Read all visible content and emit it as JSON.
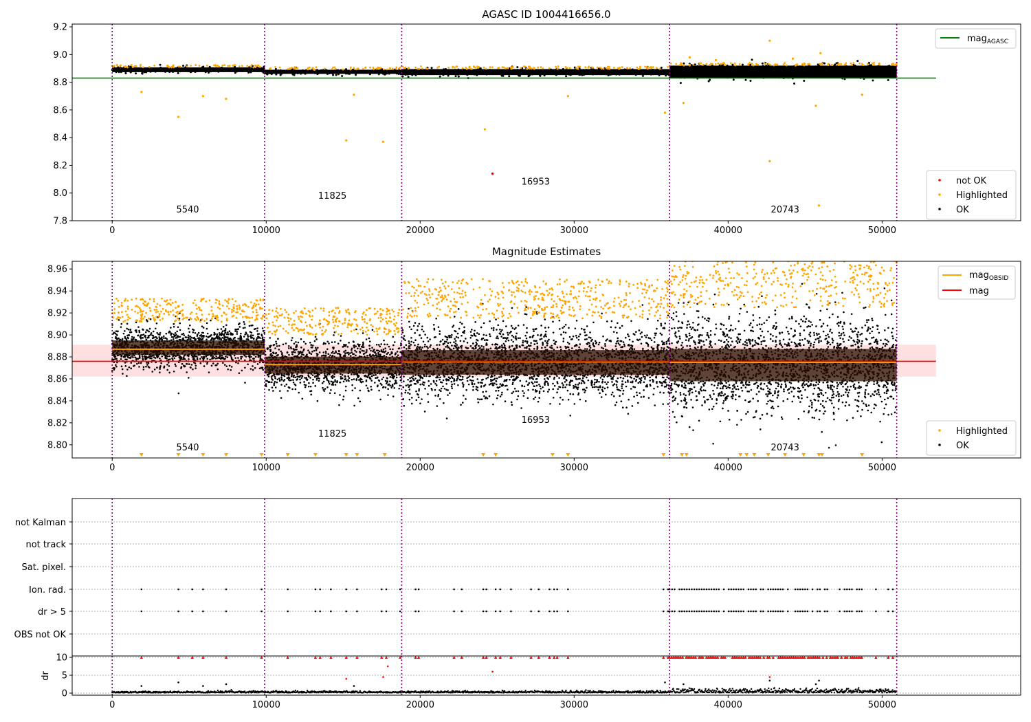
{
  "chart_data": [
    {
      "type": "scatter",
      "title": "AGASC ID 1004416656.0",
      "xlim": [
        -2600,
        59000
      ],
      "ylim": [
        7.8,
        9.22
      ],
      "xticks": [
        0,
        10000,
        20000,
        30000,
        40000,
        50000
      ],
      "yticks": [
        "7.8",
        "8.0",
        "8.2",
        "8.4",
        "8.6",
        "8.8",
        "9.0",
        "9.2"
      ],
      "obs_boundaries": [
        0,
        9900,
        18800,
        36200,
        50950
      ],
      "obs_labels": [
        {
          "text": "5540",
          "x": 4900,
          "y": 7.86
        },
        {
          "text": "11825",
          "x": 14300,
          "y": 7.96
        },
        {
          "text": "16953",
          "x": 27500,
          "y": 8.06
        },
        {
          "text": "20743",
          "x": 43700,
          "y": 7.86
        }
      ],
      "series": [
        {
          "name": "mag_AGASC",
          "kind": "hline",
          "y": 8.83,
          "x_range": [
            -2600,
            53500
          ],
          "color": "#008000"
        },
        {
          "name": "not OK",
          "kind": "points",
          "color": "#ff0000",
          "points": [
            [
              24700,
              8.14
            ]
          ]
        },
        {
          "name": "Highlighted",
          "kind": "points",
          "color": "#ffa500",
          "points": [
            [
              1900,
              8.73
            ],
            [
              4300,
              8.55
            ],
            [
              5900,
              8.7
            ],
            [
              7400,
              8.68
            ],
            [
              15200,
              8.38
            ],
            [
              15700,
              8.71
            ],
            [
              17600,
              8.37
            ],
            [
              24200,
              8.46
            ],
            [
              29600,
              8.7
            ],
            [
              35900,
              8.58
            ],
            [
              37100,
              8.65
            ],
            [
              42700,
              8.23
            ],
            [
              42700,
              9.1
            ],
            [
              45900,
              7.91
            ],
            [
              45700,
              8.63
            ],
            [
              46000,
              9.01
            ],
            [
              48700,
              8.71
            ],
            [
              37500,
              8.98
            ],
            [
              39200,
              8.96
            ],
            [
              44200,
              8.97
            ]
          ]
        },
        {
          "name": "OK",
          "kind": "band",
          "color": "#000000",
          "segments": [
            [
              0,
              9900,
              8.873,
              8.907
            ],
            [
              9900,
              18800,
              8.86,
              8.89
            ],
            [
              18800,
              36200,
              8.852,
              8.895
            ],
            [
              36200,
              50950,
              8.83,
              8.92
            ]
          ]
        }
      ],
      "legend_top": [
        "mag_AGASC"
      ],
      "legend_bottom": [
        "not OK",
        "Highlighted",
        "OK"
      ]
    },
    {
      "type": "scatter",
      "title": "Magnitude Estimates",
      "xlim": [
        -2600,
        59000
      ],
      "ylim": [
        8.788,
        8.967
      ],
      "xticks": [
        0,
        10000,
        20000,
        30000,
        40000,
        50000
      ],
      "yticks": [
        "8.80",
        "8.82",
        "8.84",
        "8.86",
        "8.88",
        "8.90",
        "8.92",
        "8.94",
        "8.96"
      ],
      "obs_boundaries": [
        0,
        9900,
        18800,
        36200,
        50950
      ],
      "obs_labels": [
        {
          "text": "5540",
          "x": 4900,
          "y": 8.795
        },
        {
          "text": "11825",
          "x": 14300,
          "y": 8.8075
        },
        {
          "text": "16953",
          "x": 27500,
          "y": 8.82
        },
        {
          "text": "20743",
          "x": 43700,
          "y": 8.795
        }
      ],
      "mag": 8.876,
      "mag_band": [
        8.862,
        8.891
      ],
      "mag_obsid": [
        [
          0,
          9900,
          8.887
        ],
        [
          9900,
          18800,
          8.873
        ],
        [
          18800,
          36200,
          8.8755
        ],
        [
          36200,
          50950,
          8.875
        ]
      ],
      "ok_spread": [
        [
          0,
          9900,
          8.865,
          8.912
        ],
        [
          9900,
          18800,
          8.845,
          8.9
        ],
        [
          18800,
          36200,
          8.835,
          8.915
        ],
        [
          36200,
          50950,
          8.82,
          8.925
        ]
      ],
      "highlight_down_x": [
        1900,
        4300,
        5900,
        7400,
        9700,
        11400,
        13200,
        15200,
        15900,
        17700,
        24100,
        24900,
        28600,
        29600,
        35800,
        37000,
        37300,
        40800,
        41200,
        41700,
        42600,
        43700,
        44900,
        45900,
        46100,
        48700
      ],
      "legend_top": [
        "mag_OBSID",
        "mag"
      ],
      "legend_bottom": [
        "Highlighted",
        "OK"
      ],
      "series": [
        {
          "name": "mag_OBSID",
          "color": "#ffa500"
        },
        {
          "name": "mag",
          "color": "#ff0000"
        },
        {
          "name": "Highlighted",
          "color": "#ffa500"
        },
        {
          "name": "OK",
          "color": "#000000"
        }
      ]
    },
    {
      "type": "scatter",
      "xlim": [
        -2600,
        59000
      ],
      "xticks": [
        0,
        10000,
        20000,
        30000,
        40000,
        50000
      ],
      "categories": [
        "not Kalman",
        "not track",
        "Sat. pixel.",
        "Ion. rad.",
        "dr > 5",
        "OBS not OK"
      ],
      "obs_boundaries": [
        0,
        9900,
        18800,
        36200,
        50950
      ],
      "flag_x": [
        1900,
        4300,
        5200,
        5900,
        7400,
        9700,
        11400,
        13200,
        13500,
        14200,
        15200,
        15900,
        17500,
        17800,
        18700,
        19700,
        19900,
        22200,
        22700,
        24100,
        24300,
        24900,
        25200,
        25900,
        27200,
        27700,
        28400,
        28700,
        28900,
        29600,
        35800,
        36100
      ],
      "flag_dense_range": [
        36200,
        48700
      ],
      "flag_extra_x": [
        49600,
        50400,
        50700
      ]
    },
    {
      "type": "scatter",
      "xlim": [
        -2600,
        59000
      ],
      "ylim": [
        -1,
        11
      ],
      "ylabel": "dr",
      "yticks": [
        "0",
        "5",
        "10"
      ],
      "xticks": [
        0,
        10000,
        20000,
        30000,
        40000,
        50000
      ],
      "obs_boundaries": [
        0,
        9900,
        18800,
        36200,
        50950
      ],
      "dr_outliers": [
        [
          1900,
          2
        ],
        [
          4300,
          3
        ],
        [
          5900,
          2
        ],
        [
          7400,
          2.5
        ],
        [
          15200,
          4
        ],
        [
          15700,
          2
        ],
        [
          17600,
          4.5
        ],
        [
          17900,
          7.5
        ],
        [
          24700,
          6
        ],
        [
          35900,
          3
        ],
        [
          37100,
          2.5
        ],
        [
          42700,
          4.5
        ],
        [
          42700,
          3.5
        ],
        [
          45900,
          3.5
        ],
        [
          45700,
          2.5
        ]
      ]
    }
  ]
}
